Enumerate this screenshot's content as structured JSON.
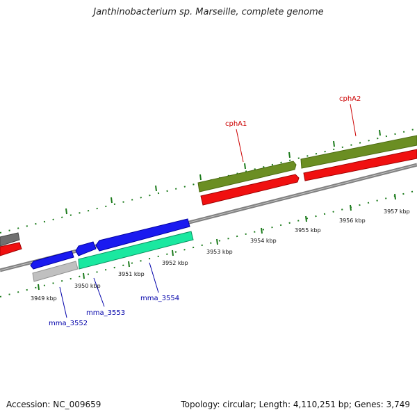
{
  "title": "Janthinobacterium sp. Marseille, complete genome",
  "footer": {
    "accession": "Accession: NC_009659",
    "summary": "Topology: circular; Length: 4,110,251 bp; Genes: 3,749"
  },
  "colors": {
    "backbone": "#808080",
    "forward_cds": "#1a1af0",
    "reverse_cds": "#1ae8a0",
    "reverse_grey": "#c0c0c0",
    "forward_grey": "#707070",
    "rna_red": "#f01010",
    "cph_olive": "#6b8e23",
    "ticks": "#1a7a1a",
    "gene_label_blue": "#0000aa",
    "gene_label_red": "#cc0000"
  },
  "kbp_labels": [
    "3949 kbp",
    "3950 kbp",
    "3951 kbp",
    "3952 kbp",
    "3953 kbp",
    "3954 kbp",
    "3955 kbp",
    "3956 kbp",
    "3957 kbp"
  ],
  "gene_labels": {
    "mma_3552": "mma_3552",
    "mma_3553": "mma_3553",
    "mma_3554": "mma_3554",
    "cphA1": "cphA1",
    "cphA2": "cphA2"
  }
}
